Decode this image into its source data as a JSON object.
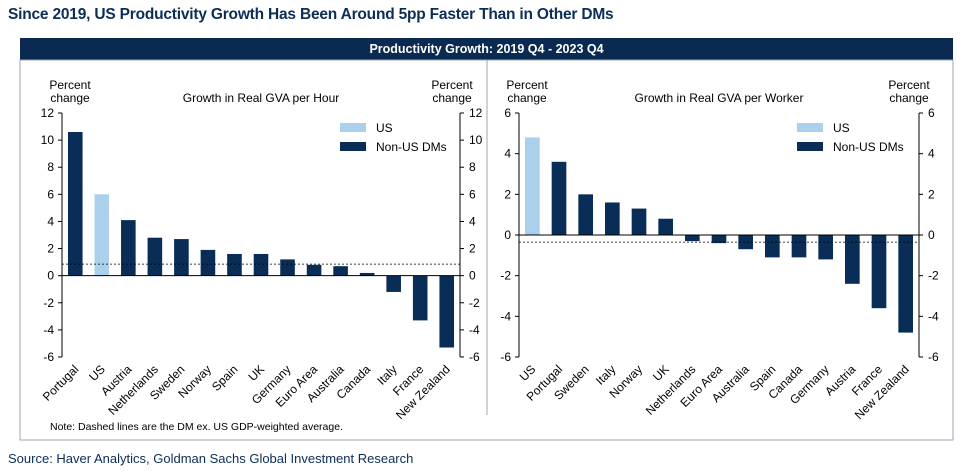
{
  "title": "Since 2019, US Productivity Growth Has Been Around 5pp Faster Than in Other DMs",
  "banner": "Productivity Growth: 2019 Q4 - 2023 Q4",
  "note": "Note: Dashed lines are the DM ex. US GDP-weighted average.",
  "source": "Source: Haver Analytics, Goldman Sachs Global Investment Research",
  "colors": {
    "us": "#aad0ec",
    "non_us": "#0a2d57",
    "banner": "#0a2a52"
  },
  "chart_data": [
    {
      "type": "bar",
      "title": "Growth in Real GVA per Hour",
      "ylabel_left": [
        "Percent",
        "change"
      ],
      "ylabel_right": [
        "Percent",
        "change"
      ],
      "ylim": [
        -6,
        12
      ],
      "yticks": [
        -6,
        -4,
        -2,
        0,
        2,
        4,
        6,
        8,
        10,
        12
      ],
      "legend": [
        "US",
        "Non-US DMs"
      ],
      "legend_position": "top-right",
      "average_line": 0.85,
      "categories": [
        "Portugal",
        "US",
        "Austria",
        "Netherlands",
        "Sweden",
        "Norway",
        "Spain",
        "UK",
        "Germany",
        "Euro Area",
        "Australia",
        "Canada",
        "Italy",
        "France",
        "New Zealand"
      ],
      "values": [
        10.6,
        6.0,
        4.1,
        2.8,
        2.7,
        1.9,
        1.6,
        1.6,
        1.2,
        0.8,
        0.7,
        0.2,
        -1.2,
        -3.3,
        -5.3
      ],
      "groups": [
        "Non-US DMs",
        "US",
        "Non-US DMs",
        "Non-US DMs",
        "Non-US DMs",
        "Non-US DMs",
        "Non-US DMs",
        "Non-US DMs",
        "Non-US DMs",
        "Non-US DMs",
        "Non-US DMs",
        "Non-US DMs",
        "Non-US DMs",
        "Non-US DMs",
        "Non-US DMs"
      ]
    },
    {
      "type": "bar",
      "title": "Growth in Real GVA per Worker",
      "ylabel_left": [
        "Percent",
        "change"
      ],
      "ylabel_right": [
        "Percent",
        "change"
      ],
      "ylim": [
        -6,
        6
      ],
      "yticks": [
        -6,
        -4,
        -2,
        0,
        2,
        4,
        6
      ],
      "legend": [
        "US",
        "Non-US DMs"
      ],
      "legend_position": "top-right",
      "average_line": -0.35,
      "categories": [
        "US",
        "Portugal",
        "Sweden",
        "Italy",
        "Norway",
        "UK",
        "Netherlands",
        "Euro Area",
        "Australia",
        "Spain",
        "Canada",
        "Germany",
        "Austria",
        "France",
        "New Zealand"
      ],
      "values": [
        4.8,
        3.6,
        2.0,
        1.6,
        1.3,
        0.8,
        -0.3,
        -0.4,
        -0.7,
        -1.1,
        -1.1,
        -1.2,
        -2.4,
        -3.6,
        -4.8
      ],
      "groups": [
        "US",
        "Non-US DMs",
        "Non-US DMs",
        "Non-US DMs",
        "Non-US DMs",
        "Non-US DMs",
        "Non-US DMs",
        "Non-US DMs",
        "Non-US DMs",
        "Non-US DMs",
        "Non-US DMs",
        "Non-US DMs",
        "Non-US DMs",
        "Non-US DMs",
        "Non-US DMs"
      ]
    }
  ]
}
